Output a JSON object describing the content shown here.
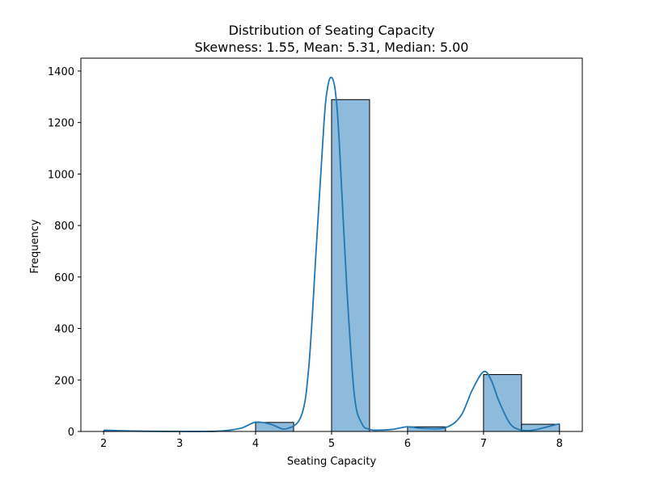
{
  "chart_data": {
    "type": "bar",
    "title": "Distribution of Seating Capacity",
    "subtitle": "Skewness: 1.55, Mean: 5.31, Median: 5.00",
    "xlabel": "Seating Capacity",
    "ylabel": "Frequency",
    "xlim": [
      1.7,
      8.3
    ],
    "ylim": [
      0,
      1450
    ],
    "xticks": [
      2,
      3,
      4,
      5,
      6,
      7,
      8
    ],
    "yticks": [
      0,
      200,
      400,
      600,
      800,
      1000,
      1200,
      1400
    ],
    "bins": [
      {
        "x0": 2.0,
        "x1": 2.5,
        "count": 2
      },
      {
        "x0": 2.5,
        "x1": 3.0,
        "count": 0
      },
      {
        "x0": 3.0,
        "x1": 3.5,
        "count": 0
      },
      {
        "x0": 3.5,
        "x1": 4.0,
        "count": 0
      },
      {
        "x0": 4.0,
        "x1": 4.5,
        "count": 35
      },
      {
        "x0": 4.5,
        "x1": 5.0,
        "count": 0
      },
      {
        "x0": 5.0,
        "x1": 5.5,
        "count": 1289
      },
      {
        "x0": 5.5,
        "x1": 6.0,
        "count": 0
      },
      {
        "x0": 6.0,
        "x1": 6.5,
        "count": 18
      },
      {
        "x0": 6.5,
        "x1": 7.0,
        "count": 0
      },
      {
        "x0": 7.0,
        "x1": 7.5,
        "count": 221
      },
      {
        "x0": 7.5,
        "x1": 8.0,
        "count": 28
      }
    ],
    "kde": {
      "x": [
        2.0,
        2.2,
        2.5,
        3.0,
        3.5,
        3.8,
        4.0,
        4.2,
        4.4,
        4.6,
        4.7,
        4.8,
        4.9,
        4.95,
        5.0,
        5.05,
        5.1,
        5.2,
        5.3,
        5.4,
        5.5,
        5.6,
        5.8,
        6.0,
        6.2,
        6.5,
        6.7,
        6.85,
        7.0,
        7.1,
        7.2,
        7.35,
        7.5,
        7.65,
        7.8,
        8.0
      ],
      "y": [
        5,
        3,
        1,
        0,
        1,
        12,
        36,
        28,
        10,
        60,
        250,
        720,
        1200,
        1340,
        1375,
        1320,
        1130,
        560,
        140,
        30,
        8,
        5,
        8,
        18,
        12,
        15,
        60,
        160,
        232,
        200,
        120,
        30,
        5,
        5,
        15,
        30
      ]
    },
    "colors": {
      "bar_fill": "#8ebadb",
      "bar_edge": "#000000",
      "kde_line": "#1f77b4",
      "axes": "#000000",
      "background": "#ffffff"
    },
    "grid": false,
    "legend": "none"
  }
}
